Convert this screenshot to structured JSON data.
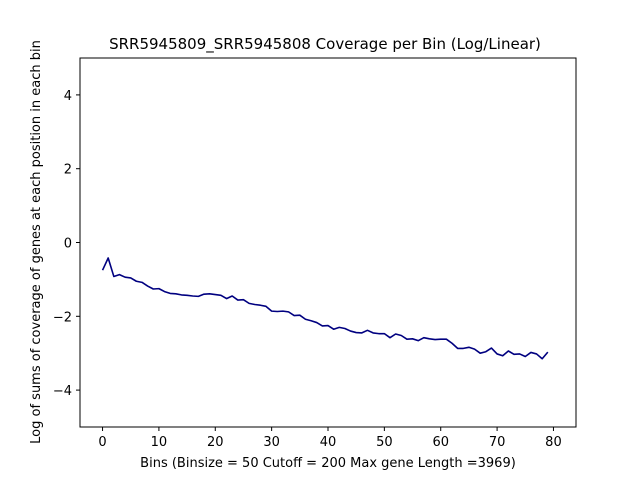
{
  "chart_data": {
    "type": "line",
    "title": "SRR5945809_SRR5945808 Coverage per Bin (Log/Linear)",
    "xlabel": "Bins  (Binsize = 50 Cutoff = 200 Max gene Length =3969)",
    "ylabel": "Log of sums of coverage of genes at each position in each bin",
    "xlim": [
      -4,
      84
    ],
    "ylim": [
      -5,
      5
    ],
    "xticks": [
      0,
      10,
      20,
      30,
      40,
      50,
      60,
      70,
      80
    ],
    "yticks": [
      -4,
      -2,
      0,
      2,
      4
    ],
    "grid": false,
    "series": [
      {
        "color": "#000080",
        "x": [
          0,
          1,
          2,
          3,
          4,
          5,
          6,
          7,
          8,
          9,
          10,
          11,
          12,
          13,
          14,
          15,
          16,
          17,
          18,
          19,
          20,
          21,
          22,
          23,
          24,
          25,
          26,
          27,
          28,
          29,
          30,
          31,
          32,
          33,
          34,
          35,
          36,
          37,
          38,
          39,
          40,
          41,
          42,
          43,
          44,
          45,
          46,
          47,
          48,
          49,
          50,
          51,
          52,
          53,
          54,
          55,
          56,
          57,
          58,
          59,
          60,
          61,
          62,
          63,
          64,
          65,
          66,
          67,
          68,
          69,
          70,
          71,
          72,
          73,
          74,
          75,
          76,
          77,
          78,
          79
        ],
        "y": [
          -0.75,
          -0.42,
          -0.92,
          -0.87,
          -0.94,
          -0.96,
          -1.05,
          -1.08,
          -1.18,
          -1.26,
          -1.25,
          -1.33,
          -1.38,
          -1.39,
          -1.42,
          -1.43,
          -1.45,
          -1.46,
          -1.4,
          -1.39,
          -1.41,
          -1.43,
          -1.52,
          -1.45,
          -1.56,
          -1.55,
          -1.65,
          -1.68,
          -1.7,
          -1.73,
          -1.86,
          -1.87,
          -1.86,
          -1.88,
          -1.98,
          -1.97,
          -2.08,
          -2.12,
          -2.17,
          -2.26,
          -2.25,
          -2.35,
          -2.3,
          -2.33,
          -2.4,
          -2.44,
          -2.45,
          -2.38,
          -2.45,
          -2.47,
          -2.47,
          -2.58,
          -2.48,
          -2.52,
          -2.62,
          -2.61,
          -2.66,
          -2.58,
          -2.61,
          -2.63,
          -2.62,
          -2.62,
          -2.73,
          -2.87,
          -2.87,
          -2.84,
          -2.89,
          -3.0,
          -2.96,
          -2.86,
          -3.02,
          -3.07,
          -2.94,
          -3.03,
          -3.02,
          -3.09,
          -2.98,
          -3.02,
          -3.15,
          -2.97
        ]
      }
    ]
  }
}
